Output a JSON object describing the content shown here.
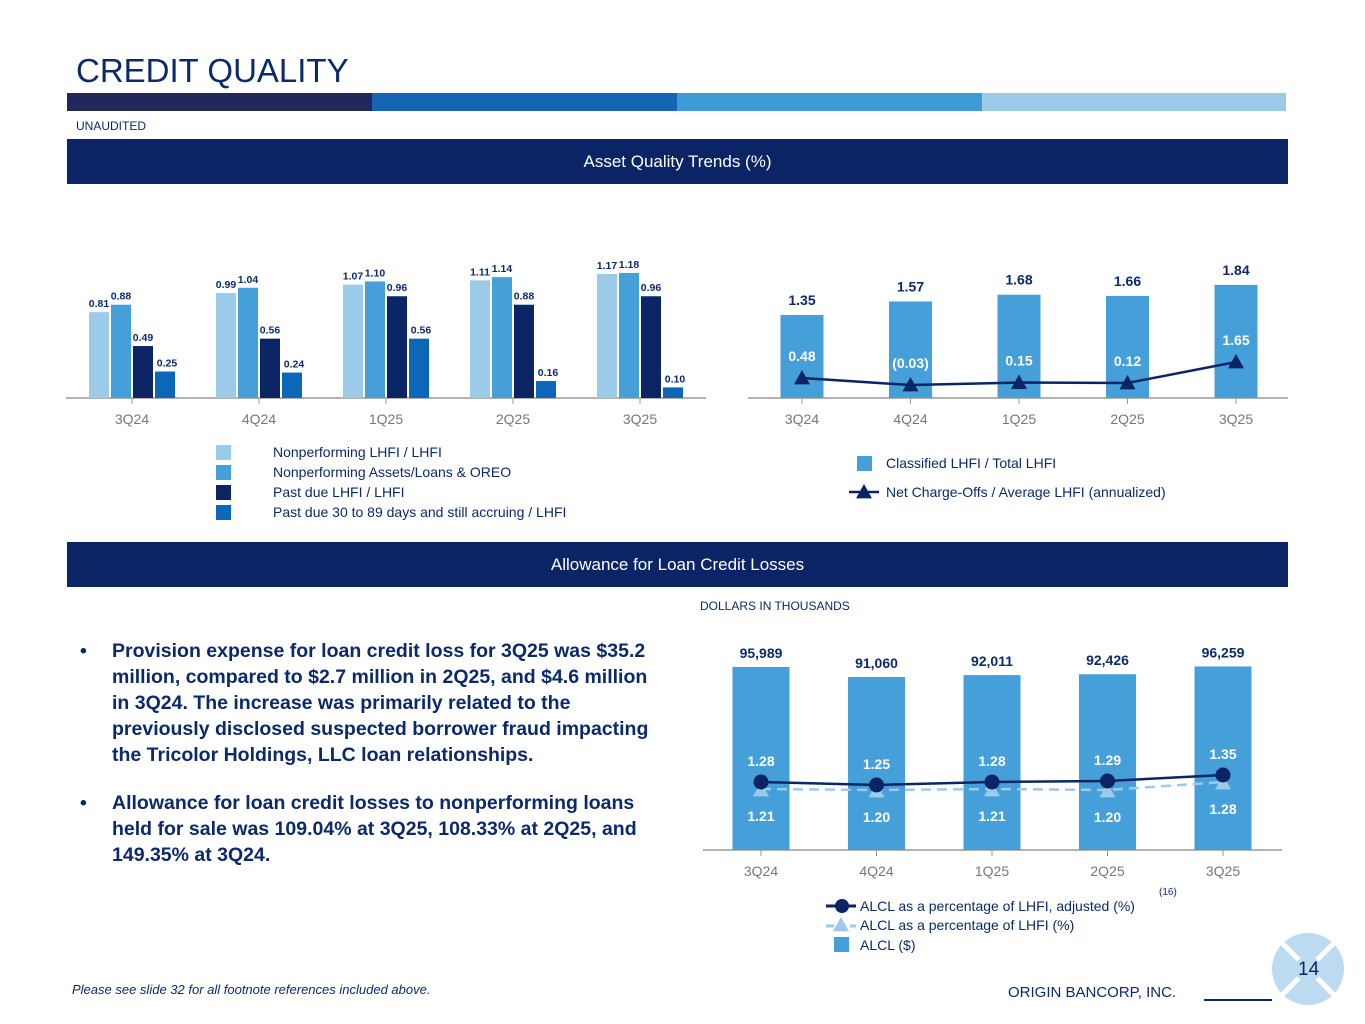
{
  "header": {
    "title": "CREDIT QUALITY",
    "unaudited": "UNAUDITED",
    "stripe_colors": [
      "#22285e",
      "#1565b4",
      "#3f9ad8",
      "#9ccbea"
    ]
  },
  "sections": {
    "asset_quality": "Asset Quality Trends (%)",
    "allowance": "Allowance for Loan Credit Losses"
  },
  "chart_data": [
    {
      "type": "bar",
      "categories": [
        "3Q24",
        "4Q24",
        "1Q25",
        "2Q25",
        "3Q25"
      ],
      "series": [
        {
          "name": "Nonperforming LHFI / LHFI",
          "color": "#9ccbea",
          "values": [
            0.81,
            0.99,
            1.07,
            1.11,
            1.17
          ],
          "labels": [
            "0.81",
            "0.99",
            "1.07",
            "1.11",
            "1.17"
          ]
        },
        {
          "name": "Nonperforming Assets/Loans & OREO",
          "color": "#459fd9",
          "values": [
            0.88,
            1.04,
            1.1,
            1.14,
            1.18
          ],
          "labels": [
            "0.88",
            "1.04",
            "1.10",
            "1.14",
            "1.18"
          ]
        },
        {
          "name": "Past due LHFI / LHFI",
          "color": "#0a2466",
          "values": [
            0.49,
            0.56,
            0.96,
            0.88,
            0.96
          ],
          "labels": [
            "0.49",
            "0.56",
            "0.96",
            "0.88",
            "0.96"
          ]
        },
        {
          "name": "Past due 30 to 89 days and still accruing / LHFI",
          "color": "#0d67b8",
          "values": [
            0.25,
            0.24,
            0.56,
            0.16,
            0.1
          ],
          "labels": [
            "0.25",
            "0.24",
            "0.56",
            "0.16",
            "0.10"
          ]
        }
      ],
      "ylim": [
        0,
        1.3
      ],
      "legend": "bottom"
    },
    {
      "type": "bar+line",
      "categories": [
        "3Q24",
        "4Q24",
        "1Q25",
        "2Q25",
        "3Q25"
      ],
      "bars": {
        "name": "Classified LHFI / Total LHFI",
        "color": "#459fd9",
        "values": [
          1.35,
          1.57,
          1.68,
          1.66,
          1.84
        ],
        "labels": [
          "1.35",
          "1.57",
          "1.68",
          "1.66",
          "1.84"
        ]
      },
      "line": {
        "name": "Net Charge-Offs / Average LHFI (annualized)",
        "color": "#0a2466",
        "marker": "triangle",
        "values": [
          0.48,
          -0.03,
          0.15,
          0.12,
          1.65
        ],
        "labels": [
          "0.48",
          "(0.03)",
          "0.15",
          "0.12",
          "1.65"
        ]
      },
      "legend": "bottom"
    },
    {
      "type": "bar+line",
      "categories": [
        "3Q24",
        "4Q24",
        "1Q25",
        "2Q25",
        "3Q25"
      ],
      "unit_note": "DOLLARS IN THOUSANDS",
      "bars": {
        "name": "ALCL ($)",
        "color": "#459fd9",
        "values": [
          95989,
          91060,
          92011,
          92426,
          96259
        ],
        "labels": [
          "95,989",
          "91,060",
          "92,011",
          "92,426",
          "96,259"
        ]
      },
      "lines": [
        {
          "name": "ALCL as a percentage of LHFI, adjusted (%)",
          "footnote": "(16)",
          "color": "#0a2466",
          "marker": "circle",
          "values": [
            1.28,
            1.25,
            1.28,
            1.29,
            1.35
          ],
          "labels": [
            "1.28",
            "1.25",
            "1.28",
            "1.29",
            "1.35"
          ]
        },
        {
          "name": "ALCL as a percentage of LHFI (%)",
          "color": "#9ccbea",
          "marker": "triangle",
          "dashed": true,
          "values": [
            1.21,
            1.2,
            1.21,
            1.2,
            1.28
          ],
          "labels": [
            "1.21",
            "1.20",
            "1.21",
            "1.20",
            "1.28"
          ]
        }
      ],
      "legend": "bottom"
    }
  ],
  "bullets": [
    "Provision expense for loan credit loss for 3Q25 was $35.2 million, compared to $2.7 million in 2Q25, and $4.6 million in 3Q24. The increase was primarily related to the previously disclosed suspected borrower fraud impacting the Tricolor Holdings, LLC loan relationships.",
    "Allowance for loan credit losses to nonperforming loans held for sale was 109.04% at 3Q25, 108.33% at 2Q25, and 149.35% at 3Q24."
  ],
  "footer": {
    "note": "Please see slide 32 for all footnote references included above.",
    "company": "ORIGIN BANCORP, INC.",
    "page": "14"
  }
}
